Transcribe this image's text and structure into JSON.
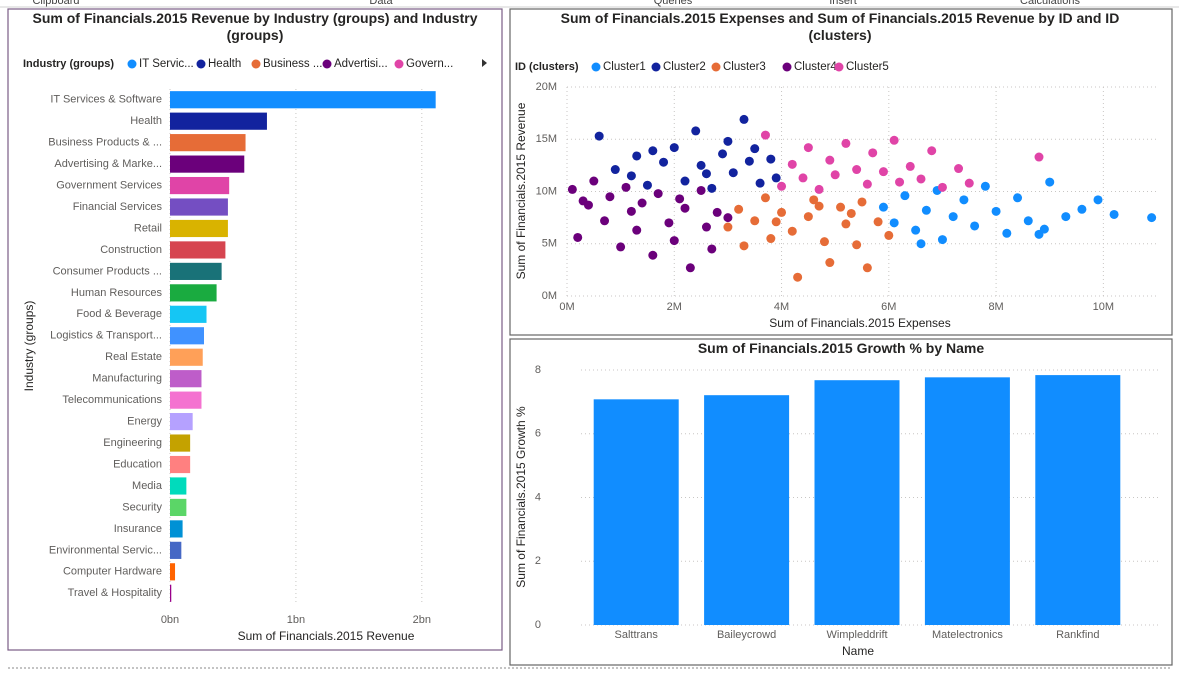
{
  "ribbon": [
    "Clipboard",
    "Data",
    "Queries",
    "Insert",
    "Calculations"
  ],
  "chart_data": [
    {
      "type": "bar",
      "horizontal": true,
      "title": "Sum of Financials.2015 Revenue by Industry (groups) and Industry (groups)",
      "legend": {
        "title": "Industry (groups)",
        "items": [
          {
            "name": "IT Servic...",
            "color": "#118dff"
          },
          {
            "name": "Health",
            "color": "#12239e"
          },
          {
            "name": "Business ...",
            "color": "#e66c37"
          },
          {
            "name": "Advertisi...",
            "color": "#6b007b"
          },
          {
            "name": "Govern...",
            "color": "#e044a7"
          }
        ]
      },
      "x_label": "Sum of Financials.2015 Revenue",
      "y_label": "Industry (groups)",
      "categories": [
        "IT Services & Software",
        "Health",
        "Business Products & ...",
        "Advertising & Marke...",
        "Government Services",
        "Financial Services",
        "Retail",
        "Construction",
        "Consumer Products ...",
        "Human Resources",
        "Food & Beverage",
        "Logistics & Transport...",
        "Real Estate",
        "Manufacturing",
        "Telecommunications",
        "Energy",
        "Engineering",
        "Education",
        "Media",
        "Security",
        "Insurance",
        "Environmental Servic...",
        "Computer Hardware",
        "Travel & Hospitality"
      ],
      "values": [
        2110000000.0,
        770000000.0,
        600000000.0,
        590000000.0,
        470000000.0,
        460000000.0,
        460000000.0,
        440000000.0,
        410000000.0,
        370000000.0,
        290000000.0,
        270000000.0,
        260000000.0,
        250000000.0,
        250000000.0,
        180000000.0,
        160000000.0,
        160000000.0,
        130000000.0,
        130000000.0,
        100000000.0,
        90000000.0,
        40000000.0,
        10000000.0
      ],
      "colors": [
        "#118dff",
        "#12239e",
        "#e66c37",
        "#6b007b",
        "#e044a7",
        "#744ec2",
        "#d9b300",
        "#d64550",
        "#197278",
        "#1aab40",
        "#15c6f4",
        "#4092ff",
        "#ffa058",
        "#be5dc9",
        "#f472d0",
        "#b5a1ff",
        "#c4a200",
        "#ff8080",
        "#00dbbc",
        "#5bd667",
        "#0091d5",
        "#4668c5",
        "#ff6300",
        "#99008a"
      ],
      "xlim": [
        0,
        2200000000.0
      ],
      "xticks": [
        {
          "value": 0,
          "label": "0bn"
        },
        {
          "value": 1000000000.0,
          "label": "1bn"
        },
        {
          "value": 2000000000.0,
          "label": "2bn"
        }
      ],
      "grid": true
    },
    {
      "type": "scatter",
      "title": "Sum of Financials.2015 Expenses and Sum of Financials.2015 Revenue by ID and ID (clusters)",
      "legend_title": "ID (clusters)",
      "x_label": "Sum of Financials.2015 Expenses",
      "y_label": "Sum of Financials.2015 Revenue",
      "series": [
        {
          "name": "Cluster1",
          "color": "#118dff",
          "x": [
            5900000.0,
            6100000.0,
            6300000.0,
            6500000.0,
            6700000.0,
            6900000.0,
            7000000.0,
            7200000.0,
            7400000.0,
            7600000.0,
            7800000.0,
            8000000.0,
            8200000.0,
            8400000.0,
            8600000.0,
            8800000.0,
            9000000.0,
            9300000.0,
            9600000.0,
            9900000.0,
            10200000.0,
            10900000.0,
            6600000.0,
            8900000.0
          ],
          "values": [
            8500000.0,
            7000000.0,
            9600000.0,
            6300000.0,
            8200000.0,
            10100000.0,
            5400000.0,
            7600000.0,
            9200000.0,
            6700000.0,
            10500000.0,
            8100000.0,
            6000000.0,
            9400000.0,
            7200000.0,
            5900000.0,
            10900000.0,
            7600000.0,
            8300000.0,
            9200000.0,
            7800000.0,
            7500000.0,
            5000000.0,
            6400000.0
          ]
        },
        {
          "name": "Cluster2",
          "color": "#12239e",
          "x": [
            600000.0,
            900000.0,
            1200000.0,
            1300000.0,
            1500000.0,
            1800000.0,
            2000000.0,
            2200000.0,
            2400000.0,
            2500000.0,
            2700000.0,
            2900000.0,
            3100000.0,
            3300000.0,
            3400000.0,
            3600000.0,
            3800000.0,
            3900000.0,
            3000000.0,
            1600000.0,
            2600000.0,
            3500000.0
          ],
          "values": [
            15300000.0,
            12100000.0,
            11500000.0,
            13400000.0,
            10600000.0,
            12800000.0,
            14200000.0,
            11000000.0,
            15800000.0,
            12500000.0,
            10300000.0,
            13600000.0,
            11800000.0,
            16900000.0,
            12900000.0,
            10800000.0,
            13100000.0,
            11300000.0,
            14800000.0,
            13900000.0,
            11700000.0,
            14100000.0
          ]
        },
        {
          "name": "Cluster3",
          "color": "#e66c37",
          "x": [
            3000000.0,
            3200000.0,
            3300000.0,
            3500000.0,
            3700000.0,
            3800000.0,
            4000000.0,
            4200000.0,
            4300000.0,
            4500000.0,
            4600000.0,
            4800000.0,
            4900000.0,
            5100000.0,
            5200000.0,
            5400000.0,
            5500000.0,
            5600000.0,
            5800000.0,
            6000000.0,
            3900000.0,
            4700000.0,
            5300000.0
          ],
          "values": [
            6600000.0,
            8300000.0,
            4800000.0,
            7200000.0,
            9400000.0,
            5500000.0,
            8000000.0,
            6200000.0,
            1800000.0,
            7600000.0,
            9200000.0,
            5200000.0,
            3200000.0,
            8500000.0,
            6900000.0,
            4900000.0,
            9000000.0,
            2700000.0,
            7100000.0,
            5800000.0,
            7100000.0,
            8600000.0,
            7900000.0
          ]
        },
        {
          "name": "Cluster4",
          "color": "#6b007b",
          "x": [
            100000.0,
            200000.0,
            400000.0,
            500000.0,
            700000.0,
            800000.0,
            1000000.0,
            1100000.0,
            1300000.0,
            1400000.0,
            1600000.0,
            1700000.0,
            1900000.0,
            2000000.0,
            2200000.0,
            2300000.0,
            2500000.0,
            2600000.0,
            2800000.0,
            3000000.0,
            300000.0,
            1200000.0,
            2100000.0,
            2700000.0
          ],
          "values": [
            10200000.0,
            5600000.0,
            8700000.0,
            11000000.0,
            7200000.0,
            9500000.0,
            4700000.0,
            10400000.0,
            6300000.0,
            8900000.0,
            3900000.0,
            9800000.0,
            7000000.0,
            5300000.0,
            8400000.0,
            2700000.0,
            10100000.0,
            6600000.0,
            8000000.0,
            7500000.0,
            9100000.0,
            8100000.0,
            9300000.0,
            4500000.0
          ]
        },
        {
          "name": "Cluster5",
          "color": "#e044a7",
          "x": [
            4000000.0,
            4200000.0,
            4400000.0,
            4500000.0,
            4700000.0,
            4900000.0,
            5000000.0,
            5200000.0,
            5400000.0,
            5600000.0,
            5700000.0,
            5900000.0,
            6100000.0,
            6200000.0,
            6400000.0,
            6600000.0,
            6800000.0,
            7000000.0,
            7300000.0,
            7500000.0,
            3700000.0,
            8800000.0
          ],
          "values": [
            10500000.0,
            12600000.0,
            11300000.0,
            14200000.0,
            10200000.0,
            13000000.0,
            11600000.0,
            14600000.0,
            12100000.0,
            10700000.0,
            13700000.0,
            11900000.0,
            14900000.0,
            10900000.0,
            12400000.0,
            11200000.0,
            13900000.0,
            10400000.0,
            12200000.0,
            10800000.0,
            15400000.0,
            13300000.0
          ]
        }
      ],
      "xlim": [
        0,
        11000000.0
      ],
      "xticks": [
        {
          "value": 0,
          "label": "0M"
        },
        {
          "value": 2000000.0,
          "label": "2M"
        },
        {
          "value": 4000000.0,
          "label": "4M"
        },
        {
          "value": 6000000.0,
          "label": "6M"
        },
        {
          "value": 8000000.0,
          "label": "8M"
        },
        {
          "value": 10000000.0,
          "label": "10M"
        }
      ],
      "ylim": [
        0,
        20000000.0
      ],
      "yticks": [
        {
          "value": 0,
          "label": "0M"
        },
        {
          "value": 5000000.0,
          "label": "5M"
        },
        {
          "value": 10000000.0,
          "label": "10M"
        },
        {
          "value": 15000000.0,
          "label": "15M"
        },
        {
          "value": 20000000.0,
          "label": "20M"
        }
      ],
      "grid": true
    },
    {
      "type": "bar",
      "horizontal": false,
      "title": "Sum of Financials.2015 Growth % by Name",
      "x_label": "Name",
      "y_label": "Sum of Financials.2015 Growth %",
      "categories": [
        "Salttrans",
        "Baileycrowd",
        "Wimpleddrift",
        "Matelectronics",
        "Rankfind"
      ],
      "values": [
        7.08,
        7.21,
        7.68,
        7.77,
        7.84
      ],
      "color": "#118dff",
      "ylim": [
        0,
        8
      ],
      "yticks": [
        0,
        2,
        4,
        6,
        8
      ],
      "grid": true
    }
  ]
}
